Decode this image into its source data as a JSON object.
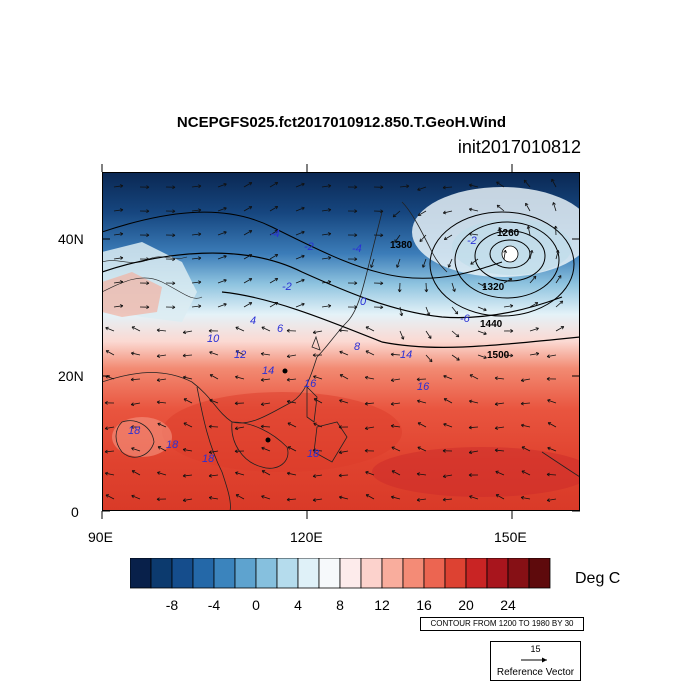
{
  "title": "NCEPGFS025.fct2017010912.850.T.GeoH.Wind",
  "subtitle": "init2017010812",
  "map": {
    "lat_labels": [
      "40N",
      "20N",
      "0"
    ],
    "lon_labels": [
      "90E",
      "120E",
      "150E"
    ],
    "height_contour_labels": [
      "1260",
      "1320",
      "1380",
      "1440",
      "1500"
    ],
    "temperature_labels": [
      "-2",
      "-2",
      "-2",
      "-4",
      "-4",
      "-6",
      "0",
      "4",
      "6",
      "8",
      "12",
      "14",
      "14",
      "16",
      "16",
      "10",
      "18",
      "18",
      "18",
      "18"
    ]
  },
  "colorbar": {
    "labels": [
      "-8",
      "-4",
      "0",
      "4",
      "8",
      "12",
      "16",
      "20",
      "24"
    ],
    "units": "Deg C",
    "colors": [
      "#08204a",
      "#0c3a6e",
      "#154d8c",
      "#2468a8",
      "#3b84bd",
      "#5ea3cf",
      "#86c0de",
      "#b5dced",
      "#dff1f8",
      "#f6f9fb",
      "#fdebeb",
      "#fcd2cc",
      "#f9ad9d",
      "#f48b76",
      "#ec6551",
      "#dd4232",
      "#c92424",
      "#a8151d",
      "#861015",
      "#5e0a0c"
    ]
  },
  "contour_note": "CONTOUR FROM 1200 TO 1980 BY 30",
  "reference_vector": {
    "magnitude": "15",
    "label": "Reference Vector"
  }
}
